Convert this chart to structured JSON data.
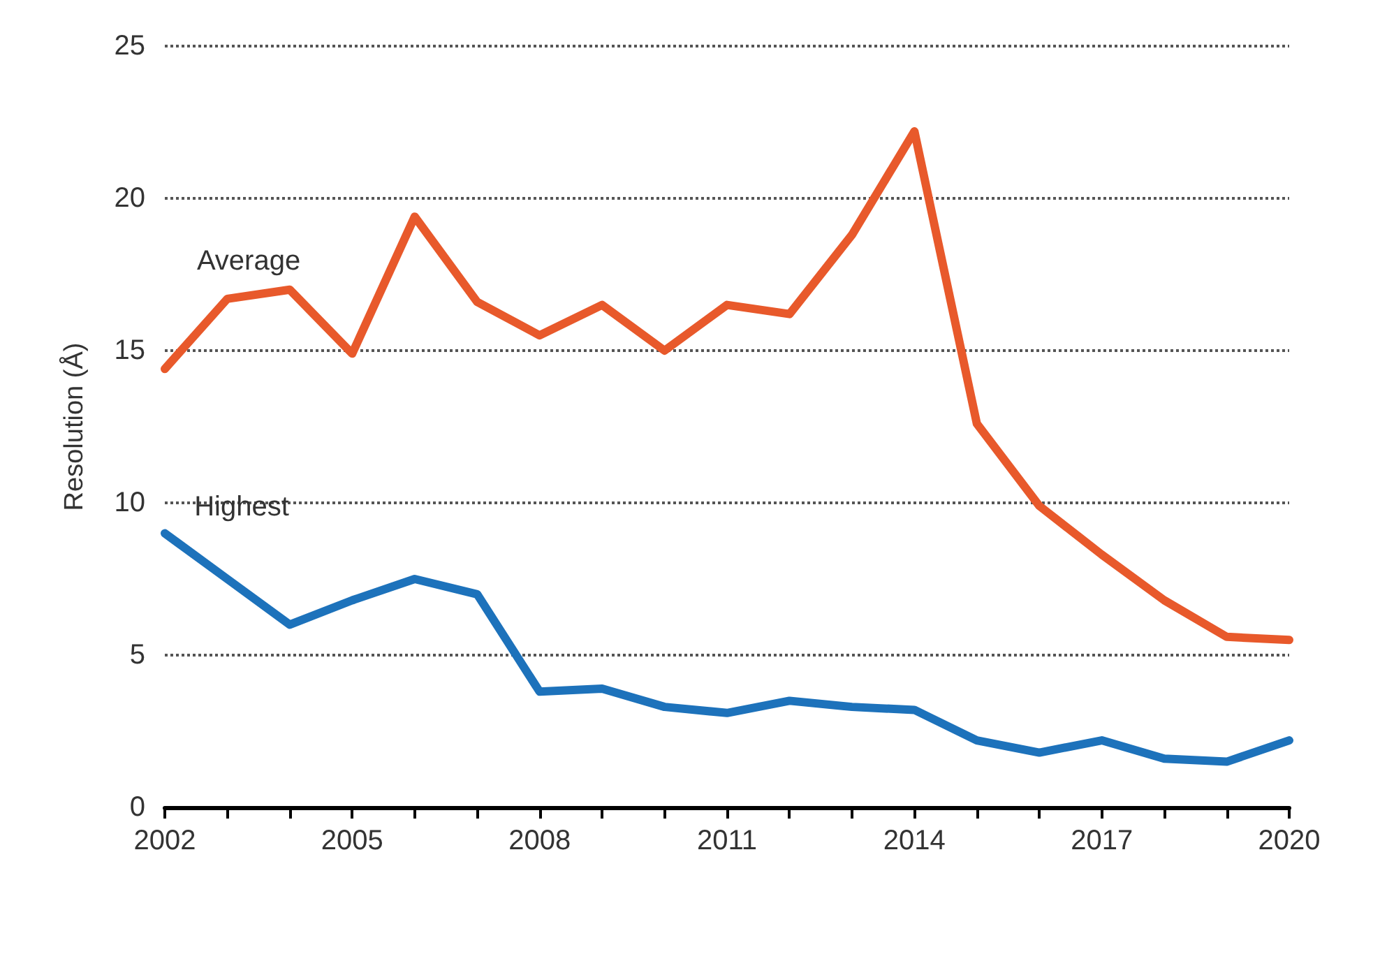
{
  "chart_data": {
    "type": "line",
    "ylabel": "Resolution (Å)",
    "x": [
      2002,
      2003,
      2004,
      2005,
      2006,
      2007,
      2008,
      2009,
      2010,
      2011,
      2012,
      2013,
      2014,
      2015,
      2016,
      2017,
      2018,
      2019,
      2020
    ],
    "series": [
      {
        "name": "Average",
        "color": "#e8592b",
        "values": [
          14.4,
          16.7,
          17.0,
          14.9,
          19.4,
          16.6,
          15.5,
          16.5,
          15.0,
          16.5,
          16.2,
          18.8,
          22.2,
          12.6,
          9.9,
          8.3,
          6.8,
          5.6,
          5.5
        ]
      },
      {
        "name": "Highest",
        "color": "#1d72bb",
        "values": [
          9.0,
          7.5,
          6.0,
          6.8,
          7.5,
          7.0,
          3.8,
          3.9,
          3.3,
          3.1,
          3.5,
          3.3,
          3.2,
          2.2,
          1.8,
          2.2,
          1.6,
          1.5,
          2.2
        ]
      }
    ],
    "xlim": [
      2002,
      2020
    ],
    "xticks": [
      2002,
      {
        "value": 2003,
        "label": null
      },
      {
        "value": 2004,
        "label": null
      },
      2005,
      {
        "value": 2006,
        "label": null
      },
      {
        "value": 2007,
        "label": null
      },
      2008,
      {
        "value": 2009,
        "label": null
      },
      {
        "value": 2010,
        "label": null
      },
      2011,
      {
        "value": 2012,
        "label": null
      },
      {
        "value": 2013,
        "label": null
      },
      2014,
      {
        "value": 2015,
        "label": null
      },
      {
        "value": 2016,
        "label": null
      },
      2017,
      {
        "value": 2018,
        "label": null
      },
      {
        "value": 2019,
        "label": null
      },
      2020
    ],
    "ylim": [
      0,
      25
    ],
    "yticks": [
      0,
      5,
      10,
      15,
      20,
      25
    ],
    "grid": "y",
    "legend": false,
    "marker": "none",
    "line_style": "solid"
  }
}
